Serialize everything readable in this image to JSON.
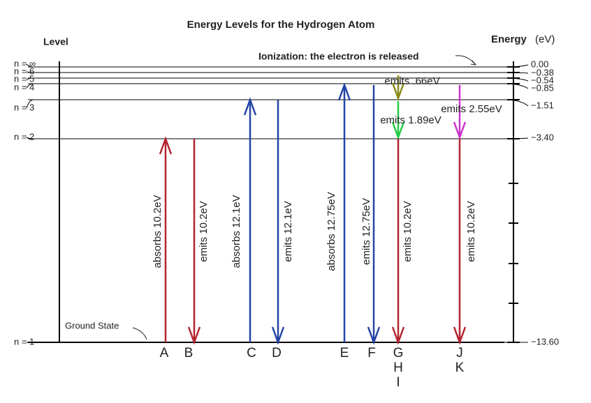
{
  "title": "Energy Levels for the Hydrogen Atom",
  "level_axis_title": "Level",
  "energy_axis_title": "Energy",
  "energy_unit": "(eV)",
  "ionization_note": "Ionization: the electron is released",
  "ground_state_note": "Ground State",
  "levels": [
    {
      "label": "n = ∞",
      "energy": "0.00"
    },
    {
      "label": "n = 6",
      "energy": "−0.38"
    },
    {
      "label": "n = 5",
      "energy": "−0.54"
    },
    {
      "label": "n = 4",
      "energy": "−0.85"
    },
    {
      "label": "n = 3",
      "energy": "−1.51"
    },
    {
      "label": "n = 2",
      "energy": "−3.40"
    },
    {
      "label": "n = 1",
      "energy": "−13.60"
    }
  ],
  "transitions": [
    {
      "label": "absorbs 10.2eV",
      "label_color": "#b3232e",
      "color": "#b3232e"
    },
    {
      "label": "emits 10.2eV",
      "label_color": "#b3232e",
      "color": "#b3232e"
    },
    {
      "label": "absorbs 12.1eV",
      "label_color": "#1d8a2e",
      "color": "#2344a6"
    },
    {
      "label": "emits 12.1eV",
      "label_color": "#1d8a2e",
      "color": "#2344a6"
    },
    {
      "label": "absorbs 12.75eV",
      "label_color": "#2344a6",
      "color": "#2344a6"
    },
    {
      "label": "emits 12.75eV",
      "label_color": "#2344a6",
      "color": "#2344a6"
    },
    {
      "label": "emits .66eV",
      "label_color": "#a0a020",
      "color": "#8a8a1a"
    },
    {
      "label": "emits 1.89eV",
      "label_color": "#22dd44",
      "color": "#22cc44"
    },
    {
      "label": "emits 10.2eV",
      "label_color": "#b3232e",
      "color": "#b3232e"
    },
    {
      "label": "emits 2.55eV",
      "label_color": "#dd22dd",
      "color": "#cc33cc"
    },
    {
      "label": "emits 10.2eV",
      "label_color": "#b3232e",
      "color": "#b3232e"
    }
  ],
  "letters": [
    "A",
    "B",
    "C",
    "D",
    "E",
    "F",
    "G",
    "H",
    "I",
    "J",
    "K"
  ]
}
